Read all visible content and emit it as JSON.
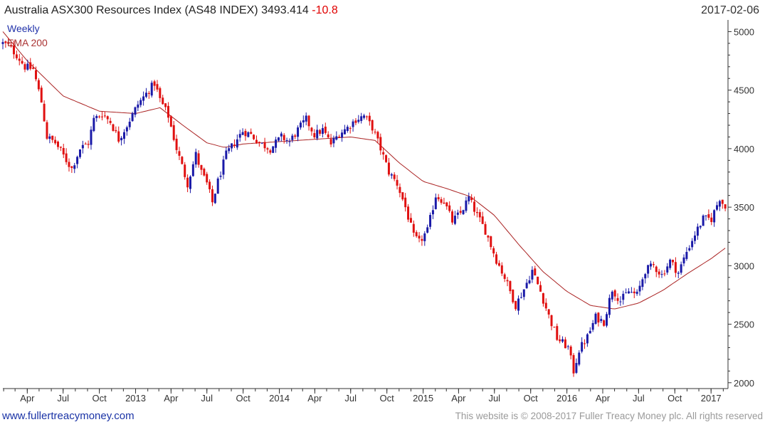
{
  "header": {
    "title": "Australia ASX300 Resources Index (AS48 INDEX) 3493.414",
    "change": "-10.8",
    "date": "2017-02-06"
  },
  "legend": {
    "series1": "Weekly",
    "series2": "EMA 200"
  },
  "footer": {
    "left": "www.fullertreacymoney.com",
    "right": "This website is © 2008-2017 Fuller Treacy Money plc. All rights reserved"
  },
  "colors": {
    "up": "#1a1aa8",
    "down": "#e01010",
    "ema": "#aa2222",
    "axis": "#333333"
  },
  "chart_data": {
    "type": "candlestick",
    "frequency": "weekly",
    "ylim": [
      1950,
      5100
    ],
    "xlim": [
      "2012-01-30",
      "2017-02-13"
    ],
    "yticks": [
      2000,
      2500,
      3000,
      3500,
      4000,
      4500,
      5000
    ],
    "xticks": [
      {
        "label": "Apr",
        "date": "2012-04-01"
      },
      {
        "label": "Jul",
        "date": "2012-07-01"
      },
      {
        "label": "Oct",
        "date": "2012-10-01"
      },
      {
        "label": "2013",
        "date": "2013-01-01"
      },
      {
        "label": "Apr",
        "date": "2013-04-01"
      },
      {
        "label": "Jul",
        "date": "2013-07-01"
      },
      {
        "label": "Oct",
        "date": "2013-10-01"
      },
      {
        "label": "2014",
        "date": "2014-01-01"
      },
      {
        "label": "Apr",
        "date": "2014-04-01"
      },
      {
        "label": "Jul",
        "date": "2014-07-01"
      },
      {
        "label": "Oct",
        "date": "2014-10-01"
      },
      {
        "label": "2015",
        "date": "2015-01-01"
      },
      {
        "label": "Apr",
        "date": "2015-04-01"
      },
      {
        "label": "Jul",
        "date": "2015-07-01"
      },
      {
        "label": "Oct",
        "date": "2015-10-01"
      },
      {
        "label": "2016",
        "date": "2016-01-01"
      },
      {
        "label": "Apr",
        "date": "2016-04-01"
      },
      {
        "label": "Jul",
        "date": "2016-07-01"
      },
      {
        "label": "Oct",
        "date": "2016-10-01"
      },
      {
        "label": "2017",
        "date": "2017-01-01"
      }
    ],
    "close_anchors": [
      [
        "2012-01-30",
        4900
      ],
      [
        "2012-02-13",
        4880
      ],
      [
        "2012-03-05",
        4800
      ],
      [
        "2012-03-26",
        4700
      ],
      [
        "2012-04-16",
        4680
      ],
      [
        "2012-05-07",
        4400
      ],
      [
        "2012-05-21",
        4100
      ],
      [
        "2012-06-11",
        4050
      ],
      [
        "2012-06-25",
        3980
      ],
      [
        "2012-07-09",
        3900
      ],
      [
        "2012-07-23",
        3830
      ],
      [
        "2012-08-13",
        4000
      ],
      [
        "2012-09-03",
        4050
      ],
      [
        "2012-09-17",
        4250
      ],
      [
        "2012-10-08",
        4300
      ],
      [
        "2012-10-29",
        4230
      ],
      [
        "2012-11-19",
        4080
      ],
      [
        "2012-12-10",
        4200
      ],
      [
        "2013-01-07",
        4380
      ],
      [
        "2013-01-28",
        4470
      ],
      [
        "2013-02-18",
        4560
      ],
      [
        "2013-03-04",
        4420
      ],
      [
        "2013-03-25",
        4280
      ],
      [
        "2013-04-15",
        4000
      ],
      [
        "2013-04-29",
        3850
      ],
      [
        "2013-05-13",
        3700
      ],
      [
        "2013-06-03",
        3950
      ],
      [
        "2013-06-17",
        3800
      ],
      [
        "2013-07-01",
        3700
      ],
      [
        "2013-07-15",
        3540
      ],
      [
        "2013-07-29",
        3720
      ],
      [
        "2013-08-19",
        3950
      ],
      [
        "2013-09-09",
        4050
      ],
      [
        "2013-09-30",
        4150
      ],
      [
        "2013-10-21",
        4120
      ],
      [
        "2013-11-11",
        4050
      ],
      [
        "2013-12-09",
        4000
      ],
      [
        "2014-01-06",
        4100
      ],
      [
        "2014-01-27",
        4060
      ],
      [
        "2014-02-17",
        4160
      ],
      [
        "2014-03-10",
        4250
      ],
      [
        "2014-03-31",
        4120
      ],
      [
        "2014-04-21",
        4160
      ],
      [
        "2014-05-12",
        4040
      ],
      [
        "2014-06-02",
        4130
      ],
      [
        "2014-06-23",
        4180
      ],
      [
        "2014-07-14",
        4250
      ],
      [
        "2014-08-04",
        4280
      ],
      [
        "2014-08-25",
        4180
      ],
      [
        "2014-09-15",
        4000
      ],
      [
        "2014-10-06",
        3800
      ],
      [
        "2014-10-27",
        3700
      ],
      [
        "2014-11-17",
        3500
      ],
      [
        "2014-12-08",
        3250
      ],
      [
        "2014-12-22",
        3200
      ],
      [
        "2015-01-12",
        3300
      ],
      [
        "2015-02-02",
        3600
      ],
      [
        "2015-02-23",
        3550
      ],
      [
        "2015-03-16",
        3380
      ],
      [
        "2015-04-06",
        3450
      ],
      [
        "2015-04-27",
        3580
      ],
      [
        "2015-05-18",
        3430
      ],
      [
        "2015-06-08",
        3300
      ],
      [
        "2015-07-06",
        3050
      ],
      [
        "2015-07-27",
        2900
      ],
      [
        "2015-08-24",
        2660
      ],
      [
        "2015-09-14",
        2800
      ],
      [
        "2015-10-05",
        2960
      ],
      [
        "2015-10-26",
        2780
      ],
      [
        "2015-11-16",
        2570
      ],
      [
        "2015-12-07",
        2380
      ],
      [
        "2016-01-04",
        2300
      ],
      [
        "2016-01-18",
        2100
      ],
      [
        "2016-02-01",
        2280
      ],
      [
        "2016-02-22",
        2390
      ],
      [
        "2016-03-14",
        2560
      ],
      [
        "2016-04-04",
        2520
      ],
      [
        "2016-04-25",
        2800
      ],
      [
        "2016-05-16",
        2700
      ],
      [
        "2016-06-06",
        2780
      ],
      [
        "2016-06-27",
        2750
      ],
      [
        "2016-07-18",
        2960
      ],
      [
        "2016-08-08",
        3000
      ],
      [
        "2016-08-29",
        2920
      ],
      [
        "2016-09-19",
        3040
      ],
      [
        "2016-10-10",
        2940
      ],
      [
        "2016-10-31",
        3120
      ],
      [
        "2016-11-21",
        3270
      ],
      [
        "2016-12-12",
        3400
      ],
      [
        "2017-01-02",
        3400
      ],
      [
        "2017-01-23",
        3580
      ],
      [
        "2017-02-06",
        3493
      ]
    ],
    "ema_anchors": [
      [
        "2012-01-30",
        5000
      ],
      [
        "2012-04-01",
        4750
      ],
      [
        "2012-07-01",
        4450
      ],
      [
        "2012-10-01",
        4320
      ],
      [
        "2013-01-01",
        4300
      ],
      [
        "2013-03-04",
        4350
      ],
      [
        "2013-05-01",
        4200
      ],
      [
        "2013-07-01",
        4050
      ],
      [
        "2013-08-15",
        4010
      ],
      [
        "2013-10-01",
        4040
      ],
      [
        "2014-01-01",
        4060
      ],
      [
        "2014-04-01",
        4080
      ],
      [
        "2014-07-01",
        4100
      ],
      [
        "2014-09-01",
        4070
      ],
      [
        "2014-11-01",
        3880
      ],
      [
        "2015-01-01",
        3720
      ],
      [
        "2015-03-01",
        3660
      ],
      [
        "2015-05-01",
        3590
      ],
      [
        "2015-07-01",
        3430
      ],
      [
        "2015-09-01",
        3180
      ],
      [
        "2015-11-01",
        2950
      ],
      [
        "2016-01-01",
        2780
      ],
      [
        "2016-03-01",
        2660
      ],
      [
        "2016-05-01",
        2630
      ],
      [
        "2016-07-01",
        2680
      ],
      [
        "2016-09-01",
        2790
      ],
      [
        "2016-11-01",
        2930
      ],
      [
        "2017-01-01",
        3060
      ],
      [
        "2017-02-06",
        3150
      ]
    ]
  }
}
